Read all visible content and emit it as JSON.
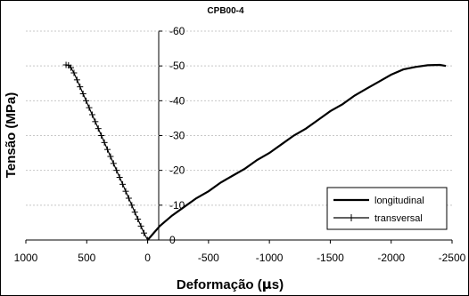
{
  "chart_data": {
    "type": "line",
    "title": "CPB00-4",
    "xlabel": "Deformação (με)",
    "xlabel_prefix": "Deformação (",
    "xlabel_mu": "μ",
    "xlabel_suffix": "s)",
    "ylabel": "Tensão (MPa)",
    "xlim": [
      1000,
      -2500
    ],
    "ylim": [
      0,
      -60
    ],
    "x_ticks": [
      1000,
      500,
      0,
      -500,
      -1000,
      -1500,
      -2000,
      -2500
    ],
    "x_tick_labels": [
      "1000",
      "500",
      "0",
      "-500",
      "-1000",
      "-1500",
      "-2000",
      "-2500"
    ],
    "y_ticks": [
      0,
      -10,
      -20,
      -30,
      -40,
      -50,
      -60
    ],
    "y_tick_labels": [
      "0",
      "-10",
      "-20",
      "-30",
      "-40",
      "-50",
      "-60"
    ],
    "grid": "horizontal dashed",
    "legend": {
      "position": "bottom-right",
      "entries": [
        "longitudinal",
        "transversal"
      ]
    },
    "series": [
      {
        "name": "longitudinal",
        "style": "thick line",
        "points": [
          [
            0,
            0
          ],
          [
            -100,
            -4
          ],
          [
            -200,
            -7
          ],
          [
            -300,
            -9.5
          ],
          [
            -400,
            -12
          ],
          [
            -500,
            -14
          ],
          [
            -600,
            -16.5
          ],
          [
            -700,
            -18.5
          ],
          [
            -800,
            -20.5
          ],
          [
            -900,
            -23
          ],
          [
            -1000,
            -25
          ],
          [
            -1100,
            -27.5
          ],
          [
            -1200,
            -30
          ],
          [
            -1300,
            -32
          ],
          [
            -1400,
            -34.5
          ],
          [
            -1500,
            -37
          ],
          [
            -1600,
            -39
          ],
          [
            -1700,
            -41.5
          ],
          [
            -1800,
            -43.5
          ],
          [
            -1900,
            -45.5
          ],
          [
            -2000,
            -47.5
          ],
          [
            -2100,
            -49
          ],
          [
            -2200,
            -49.7
          ],
          [
            -2300,
            -50.2
          ],
          [
            -2400,
            -50.3
          ],
          [
            -2450,
            -50
          ]
        ]
      },
      {
        "name": "transversal",
        "style": "line with + markers",
        "points": [
          [
            0,
            0
          ],
          [
            30,
            -2
          ],
          [
            55,
            -4
          ],
          [
            80,
            -6
          ],
          [
            105,
            -8
          ],
          [
            130,
            -10
          ],
          [
            155,
            -12
          ],
          [
            180,
            -14
          ],
          [
            205,
            -16
          ],
          [
            230,
            -18
          ],
          [
            255,
            -20
          ],
          [
            280,
            -22
          ],
          [
            305,
            -24
          ],
          [
            330,
            -26
          ],
          [
            355,
            -28
          ],
          [
            380,
            -30
          ],
          [
            405,
            -32
          ],
          [
            430,
            -34
          ],
          [
            455,
            -36
          ],
          [
            480,
            -38
          ],
          [
            505,
            -40
          ],
          [
            530,
            -42
          ],
          [
            555,
            -44
          ],
          [
            580,
            -46
          ],
          [
            605,
            -48
          ],
          [
            630,
            -49.5
          ],
          [
            650,
            -50.2
          ],
          [
            670,
            -50.3
          ]
        ]
      }
    ]
  }
}
